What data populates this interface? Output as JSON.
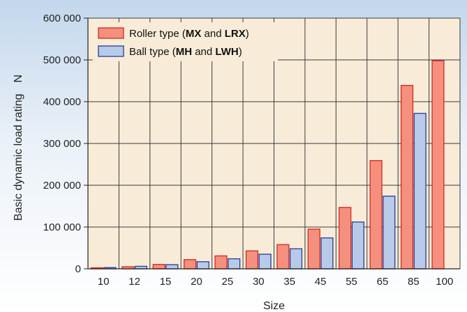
{
  "chart_data": {
    "type": "bar",
    "xlabel": "Size",
    "ylabel": "Basic dynamic load rating　N",
    "ylim": [
      0,
      600000
    ],
    "yticks": [
      0,
      100000,
      200000,
      300000,
      400000,
      500000,
      600000
    ],
    "ytick_labels": [
      "0",
      "100 000",
      "200 000",
      "300 000",
      "400 000",
      "500 000",
      "600 000"
    ],
    "grid": true,
    "legend_position": "top-left",
    "categories": [
      "10",
      "12",
      "15",
      "20",
      "25",
      "30",
      "35",
      "45",
      "55",
      "65",
      "85",
      "100"
    ],
    "series": [
      {
        "name": "Roller type",
        "legend_parts": [
          {
            "text": "Roller type (",
            "bold": false
          },
          {
            "text": "MX",
            "bold": true
          },
          {
            "text": " and ",
            "bold": false
          },
          {
            "text": "LRX",
            "bold": true
          },
          {
            "text": ")",
            "bold": false
          }
        ],
        "color": "#f4907d",
        "stroke": "#d42a1e",
        "values": [
          2500,
          5000,
          10500,
          22000,
          31000,
          43000,
          58000,
          95000,
          147000,
          259000,
          439000,
          498000
        ]
      },
      {
        "name": "Ball type",
        "legend_parts": [
          {
            "text": "Ball type (",
            "bold": false
          },
          {
            "text": "MH",
            "bold": true
          },
          {
            "text": " and ",
            "bold": false
          },
          {
            "text": "LWH",
            "bold": true
          },
          {
            "text": ")",
            "bold": false
          }
        ],
        "color": "#b7cbe9",
        "stroke": "#2b3a92",
        "values": [
          3000,
          6000,
          10000,
          17000,
          24000,
          35000,
          48000,
          74000,
          112000,
          174000,
          372000,
          null
        ]
      }
    ],
    "colors": {
      "background_top": "#c3d7ec",
      "background_bottom": "#ffffff",
      "plot_background": "#f8ecd9",
      "grid": "#3a3a3a"
    }
  }
}
